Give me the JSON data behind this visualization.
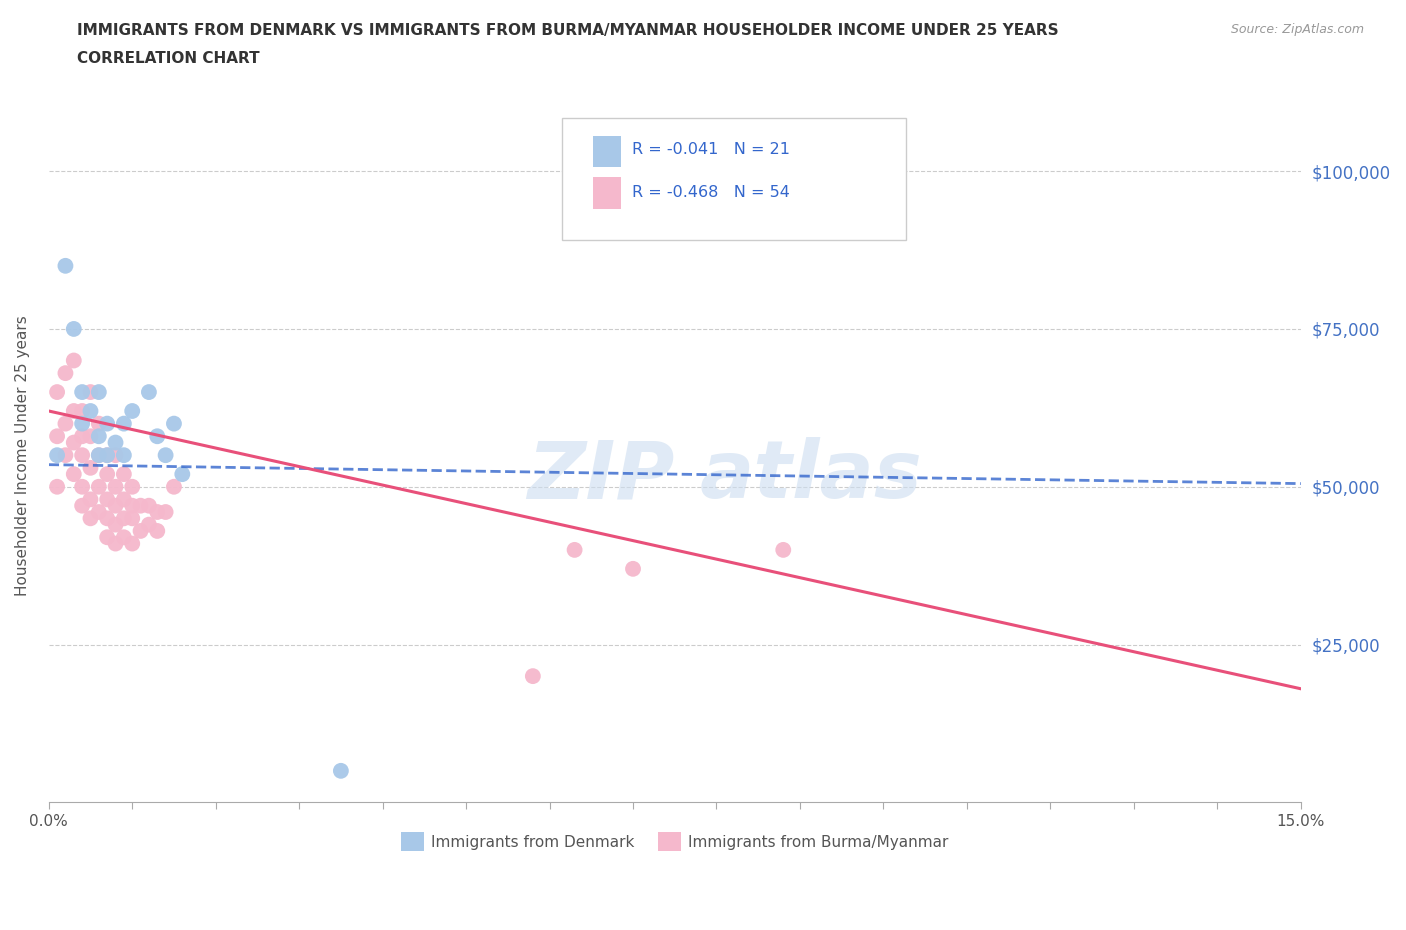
{
  "title_line1": "IMMIGRANTS FROM DENMARK VS IMMIGRANTS FROM BURMA/MYANMAR HOUSEHOLDER INCOME UNDER 25 YEARS",
  "title_line2": "CORRELATION CHART",
  "source_text": "Source: ZipAtlas.com",
  "ylabel": "Householder Income Under 25 years",
  "xlim": [
    0.0,
    0.15
  ],
  "ylim": [
    0,
    110000
  ],
  "yticks": [
    0,
    25000,
    50000,
    75000,
    100000
  ],
  "denmark_R": -0.041,
  "denmark_N": 21,
  "burma_R": -0.468,
  "burma_N": 54,
  "denmark_color": "#a8c8e8",
  "burma_color": "#f5b8cc",
  "denmark_line_color": "#3366cc",
  "burma_line_color": "#e8507a",
  "denmark_x": [
    0.001,
    0.002,
    0.003,
    0.004,
    0.004,
    0.005,
    0.006,
    0.006,
    0.006,
    0.007,
    0.007,
    0.008,
    0.009,
    0.009,
    0.01,
    0.012,
    0.013,
    0.014,
    0.015,
    0.016,
    0.035
  ],
  "denmark_y": [
    55000,
    85000,
    75000,
    65000,
    60000,
    62000,
    65000,
    58000,
    55000,
    60000,
    55000,
    57000,
    60000,
    55000,
    62000,
    65000,
    58000,
    55000,
    60000,
    52000,
    5000
  ],
  "burma_x": [
    0.001,
    0.001,
    0.001,
    0.002,
    0.002,
    0.002,
    0.003,
    0.003,
    0.003,
    0.003,
    0.004,
    0.004,
    0.004,
    0.004,
    0.004,
    0.005,
    0.005,
    0.005,
    0.005,
    0.005,
    0.006,
    0.006,
    0.006,
    0.006,
    0.007,
    0.007,
    0.007,
    0.007,
    0.007,
    0.008,
    0.008,
    0.008,
    0.008,
    0.008,
    0.009,
    0.009,
    0.009,
    0.009,
    0.01,
    0.01,
    0.01,
    0.01,
    0.011,
    0.011,
    0.012,
    0.012,
    0.013,
    0.013,
    0.014,
    0.015,
    0.058,
    0.063,
    0.07,
    0.088
  ],
  "burma_y": [
    65000,
    58000,
    50000,
    68000,
    60000,
    55000,
    70000,
    62000,
    57000,
    52000,
    62000,
    58000,
    55000,
    50000,
    47000,
    65000,
    58000,
    53000,
    48000,
    45000,
    60000,
    55000,
    50000,
    46000,
    55000,
    52000,
    48000,
    45000,
    42000,
    55000,
    50000,
    47000,
    44000,
    41000,
    52000,
    48000,
    45000,
    42000,
    50000,
    47000,
    45000,
    41000,
    47000,
    43000,
    47000,
    44000,
    46000,
    43000,
    46000,
    50000,
    20000,
    40000,
    37000,
    40000
  ],
  "dk_line_x": [
    0.0,
    0.15
  ],
  "dk_line_y": [
    53500,
    50500
  ],
  "bm_line_x": [
    0.0,
    0.15
  ],
  "bm_line_y": [
    62000,
    18000
  ]
}
